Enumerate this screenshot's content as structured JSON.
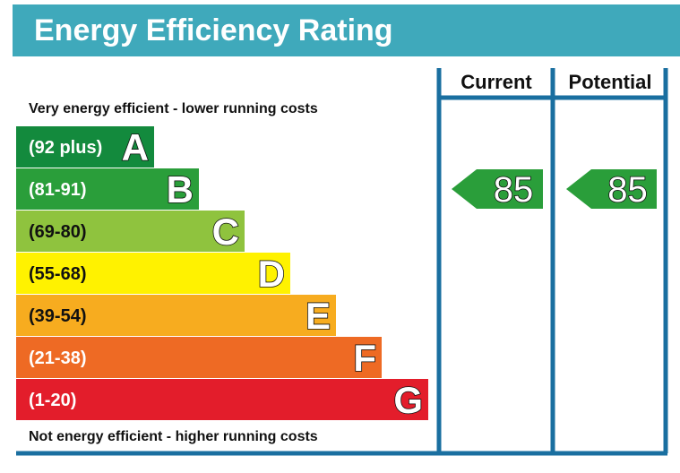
{
  "header": {
    "title": "Energy Efficiency Rating"
  },
  "notes": {
    "top": "Very energy efficient - lower running costs",
    "bottom": "Not energy efficient - higher running costs"
  },
  "columns": {
    "current": "Current",
    "potential": "Potential"
  },
  "colors": {
    "header_bg": "#3fa9bb",
    "frame": "#1a6fa0",
    "A": "#138a3d",
    "B": "#2a9e3a",
    "C": "#8fc33e",
    "D": "#fff200",
    "E": "#f7ac1f",
    "F": "#ee6a24",
    "G": "#e31d2b",
    "arrow": "#2a9e3a"
  },
  "chart_data": {
    "type": "bar",
    "title": "Energy Efficiency Rating",
    "bands": [
      {
        "label": "(92 plus)",
        "letter": "A",
        "range": [
          92,
          100
        ]
      },
      {
        "label": "(81-91)",
        "letter": "B",
        "range": [
          81,
          91
        ]
      },
      {
        "label": "(69-80)",
        "letter": "C",
        "range": [
          69,
          80
        ]
      },
      {
        "label": "(55-68)",
        "letter": "D",
        "range": [
          55,
          68
        ]
      },
      {
        "label": "(39-54)",
        "letter": "E",
        "range": [
          39,
          54
        ]
      },
      {
        "label": "(21-38)",
        "letter": "F",
        "range": [
          21,
          38
        ]
      },
      {
        "label": "(1-20)",
        "letter": "G",
        "range": [
          1,
          20
        ]
      }
    ],
    "current": 85,
    "potential": 85,
    "current_label": "85",
    "potential_label": "85"
  }
}
